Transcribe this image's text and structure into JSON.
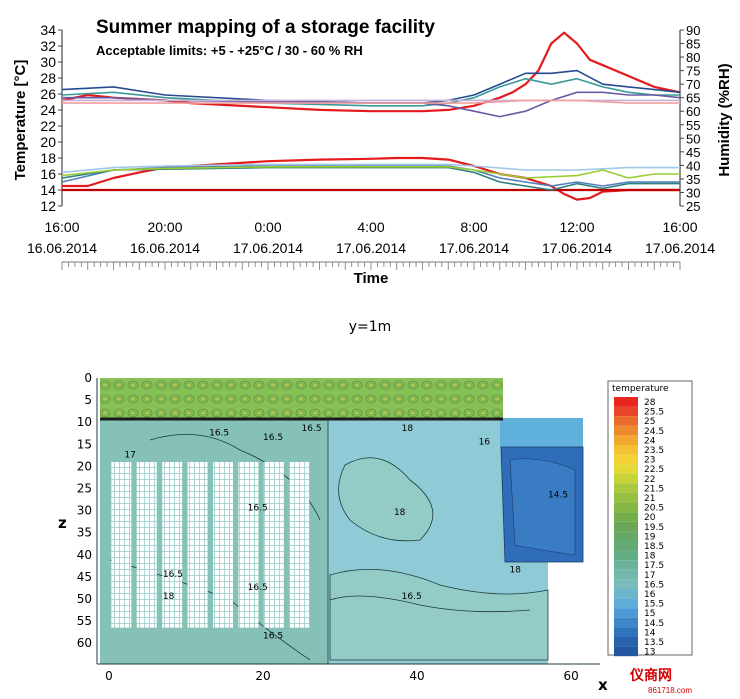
{
  "chart_data": [
    {
      "type": "line",
      "title": "Summer mapping of a storage facility",
      "subtitle": "Acceptable limits:  +5 - +25°C  / 30 - 60 % RH",
      "xlabel": "Time",
      "ylabel": "Temperature  [°C]",
      "y2label": "Humidity (%RH)",
      "ylim": [
        12,
        34
      ],
      "y2lim": [
        25,
        90
      ],
      "yticks": [
        "12",
        "14",
        "16",
        "18",
        "20",
        "22",
        "24",
        "26",
        "28",
        "30",
        "32",
        "34"
      ],
      "y2ticks": [
        "25",
        "30",
        "35",
        "40",
        "45",
        "50",
        "55",
        "60",
        "65",
        "70",
        "75",
        "80",
        "85",
        "90"
      ],
      "xticks": [
        {
          "time": "16:00",
          "date": "16.06.2014"
        },
        {
          "time": "20:00",
          "date": "16.06.2014"
        },
        {
          "time": "0:00",
          "date": "17.06.2014"
        },
        {
          "time": "4:00",
          "date": "17.06.2014"
        },
        {
          "time": "8:00",
          "date": "17.06.2014"
        },
        {
          "time": "12:00",
          "date": "17.06.2014"
        },
        {
          "time": "16:00",
          "date": "17.06.2014"
        }
      ],
      "x_hours": [
        0,
        4,
        8,
        12,
        16,
        20,
        24
      ],
      "series": [
        {
          "axis": "y2",
          "color": "#e41a1c",
          "x": [
            0,
            1,
            2,
            3,
            4,
            5,
            6,
            8,
            10,
            12,
            14,
            15,
            16,
            17,
            17.5,
            18,
            18.5,
            19,
            19.5,
            20,
            20.5,
            21,
            22,
            23,
            24
          ],
          "y": [
            64,
            66,
            65,
            64.5,
            64,
            63,
            62.5,
            61.5,
            60.5,
            60,
            60,
            60.5,
            62,
            65,
            67,
            70,
            75,
            85,
            89,
            85,
            79,
            77,
            73,
            69,
            67
          ]
        },
        {
          "axis": "y2",
          "color": "#274b8f",
          "x": [
            0,
            2,
            4,
            8,
            12,
            14,
            15,
            16,
            17,
            18,
            19,
            20,
            21,
            22,
            23,
            24
          ],
          "y": [
            68,
            69,
            66,
            64,
            63,
            63,
            64,
            66,
            70,
            74,
            74,
            75,
            70,
            69,
            68,
            67
          ]
        },
        {
          "axis": "y2",
          "color": "#3a9a9a",
          "x": [
            0,
            2,
            4,
            8,
            12,
            14,
            15,
            16,
            17,
            18,
            19,
            20,
            21,
            22,
            23,
            24
          ],
          "y": [
            66,
            67,
            65,
            63,
            62,
            62,
            63,
            65,
            69,
            72,
            70,
            72,
            69,
            67,
            66,
            66
          ]
        },
        {
          "axis": "y2",
          "color": "#6a5aa6",
          "x": [
            0,
            2,
            4,
            8,
            12,
            14,
            15,
            16,
            17,
            18,
            19,
            20,
            21,
            22,
            23,
            24
          ],
          "y": [
            65,
            65,
            64,
            63.5,
            63,
            63,
            62,
            60,
            58,
            60,
            64,
            67,
            67,
            66,
            66,
            65
          ]
        },
        {
          "axis": "y2",
          "color": "#c9b0d6",
          "x": [
            0,
            4,
            8,
            12,
            15,
            16,
            18,
            20,
            22,
            24
          ],
          "y": [
            64,
            64,
            64,
            64,
            64,
            64,
            64,
            64,
            64,
            64
          ]
        },
        {
          "axis": "y2",
          "color": "#f2a0a0",
          "x": [
            0,
            4,
            8,
            12,
            15,
            16,
            18,
            20,
            22,
            24
          ],
          "y": [
            63,
            63,
            63,
            63,
            63,
            63,
            64,
            64,
            63,
            63
          ]
        },
        {
          "axis": "y",
          "color": "#e41a1c",
          "x": [
            0,
            1,
            2,
            3,
            4,
            6,
            8,
            10,
            12,
            13,
            14,
            15,
            16,
            17,
            18,
            19,
            19.5,
            20,
            20.5,
            21,
            22,
            23,
            24
          ],
          "y": [
            14.5,
            14.5,
            15.5,
            16.2,
            16.8,
            17.2,
            17.6,
            17.8,
            17.9,
            18,
            18,
            17.8,
            17,
            16,
            15.5,
            14.5,
            13.5,
            12.8,
            13,
            13.8,
            14,
            14,
            14
          ]
        },
        {
          "axis": "y",
          "color": "#c00000",
          "x": [
            0,
            24
          ],
          "y": [
            14,
            14
          ]
        },
        {
          "axis": "y",
          "color": "#4f81bd",
          "x": [
            0,
            2,
            4,
            8,
            12,
            15,
            16,
            17,
            18,
            19,
            20,
            21,
            22,
            23,
            24
          ],
          "y": [
            15,
            16.5,
            16.8,
            17,
            17,
            17,
            16.5,
            15.5,
            15,
            14.5,
            15,
            14.5,
            15,
            15,
            15
          ]
        },
        {
          "axis": "y",
          "color": "#2f7f7f",
          "x": [
            0,
            2,
            4,
            8,
            12,
            15,
            16,
            17,
            18,
            19,
            20,
            21,
            22,
            23,
            24
          ],
          "y": [
            15.5,
            16.5,
            16.6,
            16.8,
            16.8,
            16.8,
            16.2,
            15,
            14.5,
            14,
            14.8,
            14.2,
            14.8,
            14.8,
            14.8
          ]
        },
        {
          "axis": "y",
          "color": "#9fc8e8",
          "x": [
            0,
            2,
            4,
            8,
            12,
            15,
            16,
            18,
            20,
            22,
            24
          ],
          "y": [
            16.2,
            16.8,
            17,
            17.2,
            17.2,
            17.2,
            17,
            16.5,
            16.5,
            16.8,
            16.8
          ]
        },
        {
          "axis": "y",
          "color": "#9acd32",
          "x": [
            0,
            2,
            4,
            8,
            12,
            15,
            16,
            18,
            20,
            21,
            22,
            23,
            24
          ],
          "y": [
            15.8,
            16.5,
            16.7,
            16.9,
            16.9,
            16.9,
            16.5,
            15.5,
            15.8,
            16.5,
            15.5,
            16,
            16
          ]
        }
      ]
    },
    {
      "type": "heatmap",
      "title": "y=1m",
      "xlabel": "x",
      "ylabel": "z",
      "xticks": [
        "0",
        "20",
        "40",
        "60"
      ],
      "yticks": [
        "0",
        "5",
        "10",
        "15",
        "20",
        "25",
        "30",
        "35",
        "40",
        "45",
        "50",
        "55",
        "60"
      ],
      "legend_title": "temperature",
      "legend_levels": [
        "28",
        "25.5",
        "25",
        "24.5",
        "24",
        "23.5",
        "23",
        "22.5",
        "22",
        "21.5",
        "21",
        "20.5",
        "20",
        "19.5",
        "19",
        "18.5",
        "18",
        "17.5",
        "17",
        "16.5",
        "16",
        "15.5",
        "15",
        "14.5",
        "14",
        "13.5",
        "13"
      ],
      "legend_colors": [
        "#e6261f",
        "#e8442a",
        "#ea6a2c",
        "#ee8a2e",
        "#f2a830",
        "#f4c132",
        "#f2d235",
        "#e2d836",
        "#c8d33a",
        "#acc83e",
        "#96c043",
        "#84b846",
        "#74ae4a",
        "#6aa656",
        "#66a864",
        "#64aa74",
        "#64ae86",
        "#6ab29a",
        "#72b8ac",
        "#78bcbc",
        "#6cb6cc",
        "#5eacd8",
        "#4e9ad6",
        "#3e86ca",
        "#3072bc",
        "#2862ae",
        "#2256a0"
      ],
      "contour_labels": [
        "16.5",
        "16.5",
        "16.5",
        "18",
        "16",
        "17",
        "16.5",
        "18",
        "14.5",
        "18",
        "16.5",
        "18",
        "16.5",
        "16.5",
        "16.5"
      ]
    }
  ],
  "watermark": {
    "brand": "仪商网",
    "url": "861718.com"
  }
}
